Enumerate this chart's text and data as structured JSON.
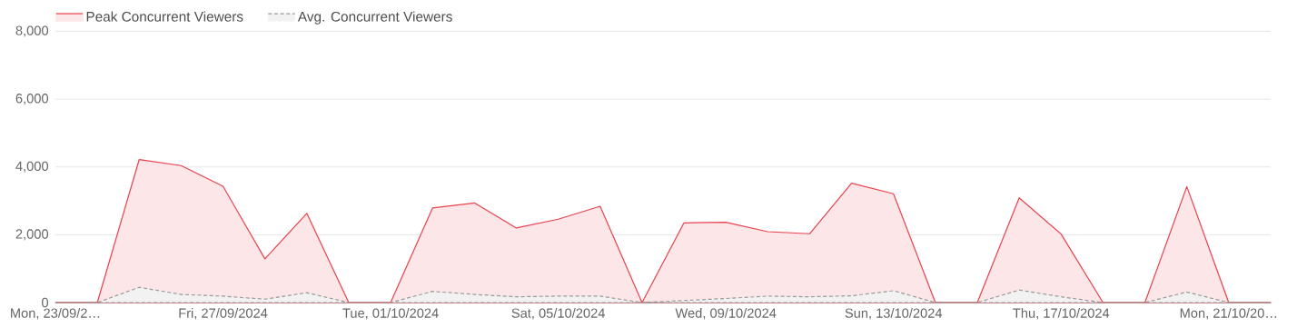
{
  "chart_data": {
    "type": "area",
    "categories": [
      "Mon, 23/09/2…",
      null,
      null,
      null,
      "Fri, 27/09/2024",
      null,
      null,
      null,
      "Tue, 01/10/2024",
      null,
      null,
      null,
      "Sat, 05/10/2024",
      null,
      null,
      null,
      "Wed, 09/10/2024",
      null,
      null,
      null,
      "Sun, 13/10/2024",
      null,
      null,
      null,
      "Thu, 17/10/2024",
      null,
      null,
      null,
      "Mon, 21/10/20…",
      null
    ],
    "series": [
      {
        "name": "Peak Concurrent Viewers",
        "color": "#e8424e",
        "line_style": "solid",
        "values": [
          0,
          0,
          4220,
          4040,
          3430,
          1290,
          2630,
          0,
          0,
          2790,
          2940,
          2200,
          2460,
          2840,
          0,
          2350,
          2370,
          2090,
          2030,
          3520,
          3210,
          0,
          0,
          3090,
          2020,
          0,
          0,
          3420,
          0,
          0
        ]
      },
      {
        "name": "Avg. Concurrent Viewers",
        "color": "#9a9a9a",
        "line_style": "dashed",
        "values": [
          0,
          0,
          450,
          240,
          190,
          100,
          290,
          0,
          0,
          330,
          240,
          170,
          190,
          190,
          0,
          60,
          120,
          190,
          170,
          200,
          350,
          0,
          0,
          370,
          170,
          0,
          0,
          310,
          0,
          0
        ]
      }
    ],
    "ylim": [
      0,
      8000
    ],
    "yticks": [
      0,
      {
        "value": 2000,
        "label": "2,000"
      },
      {
        "value": 4000,
        "label": "4,000"
      },
      {
        "value": 6000,
        "label": "6,000"
      },
      {
        "value": 8000,
        "label": "8,000"
      }
    ],
    "grid": "y",
    "legend": "top left",
    "marker": "none"
  }
}
